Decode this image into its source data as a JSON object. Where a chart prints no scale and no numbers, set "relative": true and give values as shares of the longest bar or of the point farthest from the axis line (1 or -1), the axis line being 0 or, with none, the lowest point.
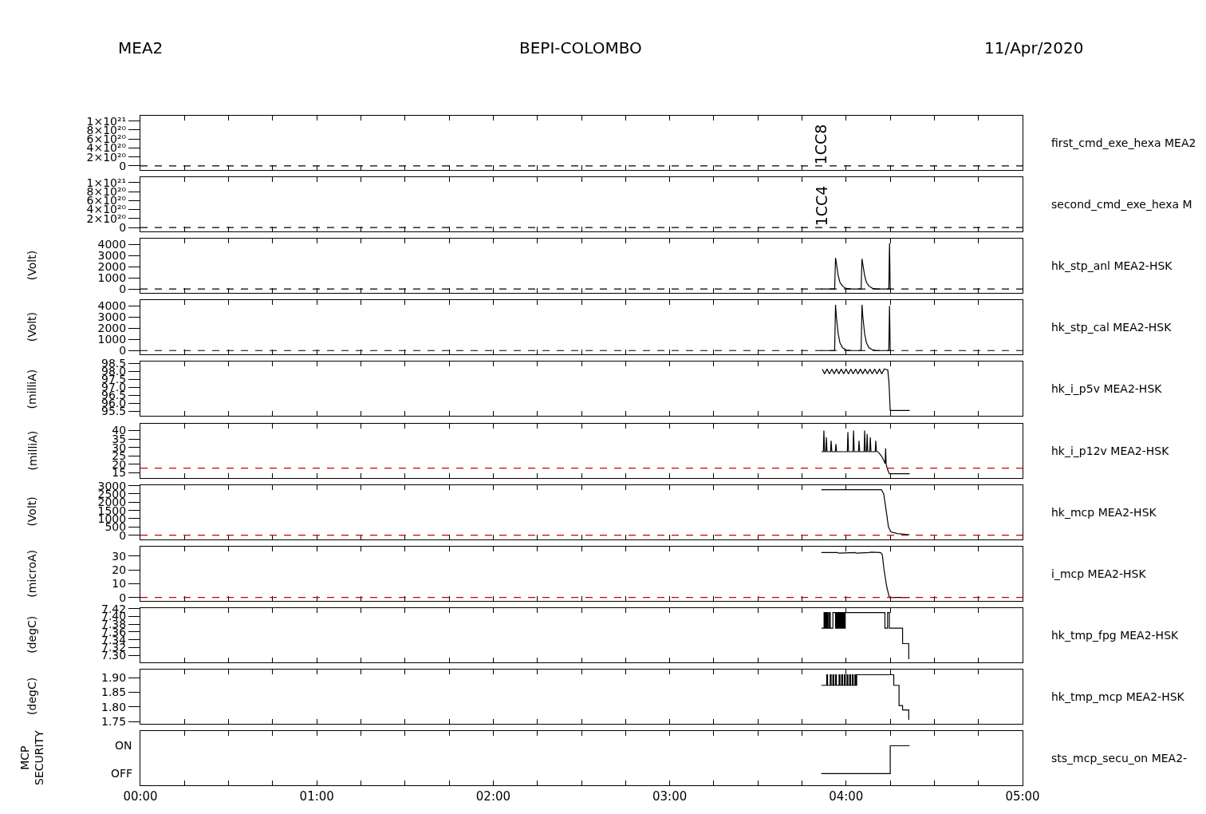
{
  "chart_data": [
    {
      "type": "line",
      "title": "BEPI-COLOMBO",
      "annotations": [
        "MEA2",
        "11/Apr/2020",
        {
          "text": "1CC8",
          "x": 3.86,
          "y": 0
        },
        "first_cmd_exe_hexa MEA2"
      ],
      "xlim": [
        0,
        5
      ],
      "xticks": [
        {
          "value": 0,
          "label": null
        },
        {
          "value": 0.25,
          "label": null
        },
        {
          "value": 0.5,
          "label": null
        },
        {
          "value": 0.75,
          "label": null
        },
        {
          "value": 1,
          "label": null
        },
        {
          "value": 1.25,
          "label": null
        },
        {
          "value": 1.5,
          "label": null
        },
        {
          "value": 1.75,
          "label": null
        },
        {
          "value": 2,
          "label": null
        },
        {
          "value": 2.25,
          "label": null
        },
        {
          "value": 2.5,
          "label": null
        },
        {
          "value": 2.75,
          "label": null
        },
        {
          "value": 3,
          "label": null
        },
        {
          "value": 3.25,
          "label": null
        },
        {
          "value": 3.5,
          "label": null
        },
        {
          "value": 3.75,
          "label": null
        },
        {
          "value": 4,
          "label": null
        },
        {
          "value": 4.25,
          "label": null
        },
        {
          "value": 4.5,
          "label": null
        },
        {
          "value": 4.75,
          "label": null
        },
        {
          "value": 5,
          "label": null
        }
      ],
      "ylim": [
        -9e+19,
        1.12e+21
      ],
      "yticks": [
        0,
        {
          "value": 2e+20,
          "label": "2×10²⁰"
        },
        {
          "value": 4e+20,
          "label": "4×10²⁰"
        },
        {
          "value": 6e+20,
          "label": "6×10²⁰"
        },
        {
          "value": 8e+20,
          "label": "8×10²⁰"
        },
        {
          "value": 1e+21,
          "label": "1×10²¹"
        }
      ],
      "ref_lines": [
        {
          "axis": "y",
          "value": 0,
          "color": "#000000",
          "line_style": "dashed"
        }
      ],
      "tick_labels": "y"
    },
    {
      "type": "line",
      "annotations": [
        {
          "text": "1CC4",
          "x": 3.86,
          "y": 0
        },
        "second_cmd_exe_hexa M"
      ],
      "xlim": [
        0,
        5
      ],
      "xticks": [
        {
          "value": 0,
          "label": null
        },
        {
          "value": 0.25,
          "label": null
        },
        {
          "value": 0.5,
          "label": null
        },
        {
          "value": 0.75,
          "label": null
        },
        {
          "value": 1,
          "label": null
        },
        {
          "value": 1.25,
          "label": null
        },
        {
          "value": 1.5,
          "label": null
        },
        {
          "value": 1.75,
          "label": null
        },
        {
          "value": 2,
          "label": null
        },
        {
          "value": 2.25,
          "label": null
        },
        {
          "value": 2.5,
          "label": null
        },
        {
          "value": 2.75,
          "label": null
        },
        {
          "value": 3,
          "label": null
        },
        {
          "value": 3.25,
          "label": null
        },
        {
          "value": 3.5,
          "label": null
        },
        {
          "value": 3.75,
          "label": null
        },
        {
          "value": 4,
          "label": null
        },
        {
          "value": 4.25,
          "label": null
        },
        {
          "value": 4.5,
          "label": null
        },
        {
          "value": 4.75,
          "label": null
        },
        {
          "value": 5,
          "label": null
        }
      ],
      "ylim": [
        -9e+19,
        1.12e+21
      ],
      "yticks": [
        0,
        {
          "value": 2e+20,
          "label": "2×10²⁰"
        },
        {
          "value": 4e+20,
          "label": "4×10²⁰"
        },
        {
          "value": 6e+20,
          "label": "6×10²⁰"
        },
        {
          "value": 8e+20,
          "label": "8×10²⁰"
        },
        {
          "value": 1e+21,
          "label": "1×10²¹"
        }
      ],
      "ref_lines": [
        {
          "axis": "y",
          "value": 0,
          "color": "#000000",
          "line_style": "dashed"
        }
      ],
      "tick_labels": "y"
    },
    {
      "type": "line",
      "ylabel": "(Volt)",
      "annotations": [
        "hk_stp_anl MEA2-HSK"
      ],
      "xlim": [
        0,
        5
      ],
      "xticks": [
        {
          "value": 0,
          "label": null
        },
        {
          "value": 0.25,
          "label": null
        },
        {
          "value": 0.5,
          "label": null
        },
        {
          "value": 0.75,
          "label": null
        },
        {
          "value": 1,
          "label": null
        },
        {
          "value": 1.25,
          "label": null
        },
        {
          "value": 1.5,
          "label": null
        },
        {
          "value": 1.75,
          "label": null
        },
        {
          "value": 2,
          "label": null
        },
        {
          "value": 2.25,
          "label": null
        },
        {
          "value": 2.5,
          "label": null
        },
        {
          "value": 2.75,
          "label": null
        },
        {
          "value": 3,
          "label": null
        },
        {
          "value": 3.25,
          "label": null
        },
        {
          "value": 3.5,
          "label": null
        },
        {
          "value": 3.75,
          "label": null
        },
        {
          "value": 4,
          "label": null
        },
        {
          "value": 4.25,
          "label": null
        },
        {
          "value": 4.5,
          "label": null
        },
        {
          "value": 4.75,
          "label": null
        },
        {
          "value": 5,
          "label": null
        }
      ],
      "ylim": [
        -360,
        4500
      ],
      "yticks": [
        0,
        1000,
        2000,
        3000,
        4000
      ],
      "ref_lines": [
        {
          "axis": "y",
          "value": 0,
          "color": "#000000",
          "line_style": "dashed"
        }
      ],
      "tick_labels": "y",
      "series": [
        {
          "color": "#000000",
          "x": [
            3.86,
            3.935,
            3.94,
            3.945,
            3.955,
            3.965,
            3.98,
            4.0,
            4.03,
            4.085,
            4.09,
            4.095,
            4.105,
            4.115,
            4.13,
            4.15,
            4.17,
            4.242,
            4.246,
            4.25
          ],
          "values": [
            0,
            0,
            2800,
            2300,
            1200,
            600,
            250,
            50,
            0,
            0,
            2700,
            2200,
            1200,
            600,
            250,
            60,
            0,
            0,
            4100,
            0
          ]
        }
      ]
    },
    {
      "type": "line",
      "ylabel": "(Volt)",
      "annotations": [
        "hk_stp_cal MEA2-HSK"
      ],
      "xlim": [
        0,
        5
      ],
      "xticks": [
        {
          "value": 0,
          "label": null
        },
        {
          "value": 0.25,
          "label": null
        },
        {
          "value": 0.5,
          "label": null
        },
        {
          "value": 0.75,
          "label": null
        },
        {
          "value": 1,
          "label": null
        },
        {
          "value": 1.25,
          "label": null
        },
        {
          "value": 1.5,
          "label": null
        },
        {
          "value": 1.75,
          "label": null
        },
        {
          "value": 2,
          "label": null
        },
        {
          "value": 2.25,
          "label": null
        },
        {
          "value": 2.5,
          "label": null
        },
        {
          "value": 2.75,
          "label": null
        },
        {
          "value": 3,
          "label": null
        },
        {
          "value": 3.25,
          "label": null
        },
        {
          "value": 3.5,
          "label": null
        },
        {
          "value": 3.75,
          "label": null
        },
        {
          "value": 4,
          "label": null
        },
        {
          "value": 4.25,
          "label": null
        },
        {
          "value": 4.5,
          "label": null
        },
        {
          "value": 4.75,
          "label": null
        },
        {
          "value": 5,
          "label": null
        }
      ],
      "ylim": [
        -360,
        4500
      ],
      "yticks": [
        0,
        1000,
        2000,
        3000,
        4000
      ],
      "ref_lines": [
        {
          "axis": "y",
          "value": 0,
          "color": "#000000",
          "line_style": "dashed"
        }
      ],
      "tick_labels": "y",
      "series": [
        {
          "color": "#000000",
          "x": [
            3.86,
            3.935,
            3.94,
            3.945,
            3.955,
            3.965,
            3.98,
            4.0,
            4.03,
            4.085,
            4.09,
            4.095,
            4.105,
            4.115,
            4.13,
            4.15,
            4.17,
            4.242,
            4.246,
            4.25
          ],
          "values": [
            0,
            0,
            4100,
            3000,
            1500,
            700,
            250,
            50,
            0,
            0,
            4100,
            3000,
            1500,
            700,
            250,
            60,
            0,
            0,
            4000,
            0
          ]
        }
      ]
    },
    {
      "type": "line",
      "ylabel": "(milliA)",
      "annotations": [
        "hk_i_p5v MEA2-HSK"
      ],
      "xlim": [
        0,
        5
      ],
      "xticks": [
        {
          "value": 0,
          "label": null
        },
        {
          "value": 0.25,
          "label": null
        },
        {
          "value": 0.5,
          "label": null
        },
        {
          "value": 0.75,
          "label": null
        },
        {
          "value": 1,
          "label": null
        },
        {
          "value": 1.25,
          "label": null
        },
        {
          "value": 1.5,
          "label": null
        },
        {
          "value": 1.75,
          "label": null
        },
        {
          "value": 2,
          "label": null
        },
        {
          "value": 2.25,
          "label": null
        },
        {
          "value": 2.5,
          "label": null
        },
        {
          "value": 2.75,
          "label": null
        },
        {
          "value": 3,
          "label": null
        },
        {
          "value": 3.25,
          "label": null
        },
        {
          "value": 3.5,
          "label": null
        },
        {
          "value": 3.75,
          "label": null
        },
        {
          "value": 4,
          "label": null
        },
        {
          "value": 4.25,
          "label": null
        },
        {
          "value": 4.5,
          "label": null
        },
        {
          "value": 4.75,
          "label": null
        },
        {
          "value": 5,
          "label": null
        }
      ],
      "ylim": [
        95.2,
        98.6
      ],
      "yticks": [
        95.5,
        {
          "value": 96,
          "label": "96.0"
        },
        96.5,
        {
          "value": 97,
          "label": "97.0"
        },
        97.5,
        {
          "value": 98,
          "label": "98.0"
        },
        98.5
      ],
      "tick_labels": "y",
      "series": [
        {
          "color": "#000000",
          "x": [
            3.865,
            3.878,
            3.892,
            3.905,
            3.919,
            3.932,
            3.946,
            3.959,
            3.973,
            3.986,
            4.0,
            4.013,
            4.027,
            4.04,
            4.054,
            4.067,
            4.081,
            4.094,
            4.108,
            4.121,
            4.135,
            4.148,
            4.162,
            4.175,
            4.189,
            4.202,
            4.216,
            4.236,
            4.243,
            4.25,
            4.36
          ],
          "values": [
            98.15,
            97.85,
            98.15,
            97.85,
            98.15,
            97.85,
            98.15,
            97.85,
            98.15,
            97.85,
            98.15,
            97.85,
            98.15,
            97.85,
            98.15,
            97.85,
            98.15,
            97.85,
            98.15,
            97.85,
            98.15,
            97.85,
            98.15,
            97.85,
            98.15,
            97.85,
            98.15,
            98.1,
            97.3,
            95.55,
            95.55
          ]
        }
      ]
    },
    {
      "type": "line",
      "ylabel": "(milliA)",
      "annotations": [
        "hk_i_p12v MEA2-HSK"
      ],
      "xlim": [
        0,
        5
      ],
      "xticks": [
        {
          "value": 0,
          "label": null
        },
        {
          "value": 0.25,
          "label": null
        },
        {
          "value": 0.5,
          "label": null
        },
        {
          "value": 0.75,
          "label": null
        },
        {
          "value": 1,
          "label": null
        },
        {
          "value": 1.25,
          "label": null
        },
        {
          "value": 1.5,
          "label": null
        },
        {
          "value": 1.75,
          "label": null
        },
        {
          "value": 2,
          "label": null
        },
        {
          "value": 2.25,
          "label": null
        },
        {
          "value": 2.5,
          "label": null
        },
        {
          "value": 2.75,
          "label": null
        },
        {
          "value": 3,
          "label": null
        },
        {
          "value": 3.25,
          "label": null
        },
        {
          "value": 3.5,
          "label": null
        },
        {
          "value": 3.75,
          "label": null
        },
        {
          "value": 4,
          "label": null
        },
        {
          "value": 4.25,
          "label": null
        },
        {
          "value": 4.5,
          "label": null
        },
        {
          "value": 4.75,
          "label": null
        },
        {
          "value": 5,
          "label": null
        }
      ],
      "ylim": [
        12.2,
        44.2
      ],
      "yticks": [
        15,
        20,
        25,
        30,
        35,
        40
      ],
      "ref_lines": [
        {
          "axis": "y",
          "value": 17.8,
          "color": "#cc0000",
          "line_style": "dashed"
        }
      ],
      "tick_labels": "y",
      "series": [
        {
          "color": "#000000",
          "x": [
            3.86,
            3.871,
            3.874,
            3.878,
            3.885,
            3.888,
            3.892,
            3.912,
            3.915,
            3.919,
            3.939,
            3.942,
            3.946,
            4.007,
            4.01,
            4.014,
            4.039,
            4.042,
            4.046,
            4.07,
            4.073,
            4.077,
            4.102,
            4.105,
            4.109,
            4.116,
            4.119,
            4.123,
            4.134,
            4.137,
            4.141,
            4.165,
            4.168,
            4.172,
            4.18,
            4.2,
            4.215,
            4.221,
            4.224,
            4.227,
            4.235,
            4.245,
            4.36
          ],
          "values": [
            27.5,
            27.5,
            40,
            27.5,
            27.5,
            36,
            27.5,
            27.5,
            34,
            27.5,
            27.5,
            32,
            27.5,
            27.5,
            39,
            27.5,
            27.5,
            40,
            27.5,
            27.5,
            34,
            27.5,
            27.5,
            40,
            27.5,
            27.5,
            38,
            27.5,
            27.5,
            36,
            27.5,
            27.5,
            34,
            27.5,
            27.5,
            25,
            22,
            20.5,
            29.5,
            20,
            17,
            14.5,
            14.5
          ]
        }
      ]
    },
    {
      "type": "line",
      "ylabel": "(Volt)",
      "annotations": [
        "hk_mcp MEA2-HSK"
      ],
      "xlim": [
        0,
        5
      ],
      "xticks": [
        {
          "value": 0,
          "label": null
        },
        {
          "value": 0.25,
          "label": null
        },
        {
          "value": 0.5,
          "label": null
        },
        {
          "value": 0.75,
          "label": null
        },
        {
          "value": 1,
          "label": null
        },
        {
          "value": 1.25,
          "label": null
        },
        {
          "value": 1.5,
          "label": null
        },
        {
          "value": 1.75,
          "label": null
        },
        {
          "value": 2,
          "label": null
        },
        {
          "value": 2.25,
          "label": null
        },
        {
          "value": 2.5,
          "label": null
        },
        {
          "value": 2.75,
          "label": null
        },
        {
          "value": 3,
          "label": null
        },
        {
          "value": 3.25,
          "label": null
        },
        {
          "value": 3.5,
          "label": null
        },
        {
          "value": 3.75,
          "label": null
        },
        {
          "value": 4,
          "label": null
        },
        {
          "value": 4.25,
          "label": null
        },
        {
          "value": 4.5,
          "label": null
        },
        {
          "value": 4.75,
          "label": null
        },
        {
          "value": 5,
          "label": null
        }
      ],
      "ylim": [
        -240,
        3050
      ],
      "yticks": [
        0,
        500,
        1000,
        1500,
        2000,
        2500,
        3000
      ],
      "ref_lines": [
        {
          "axis": "y",
          "value": 0,
          "color": "#cc0000",
          "line_style": "dashed"
        }
      ],
      "tick_labels": "y",
      "series": [
        {
          "color": "#000000",
          "x": [
            3.86,
            4.2,
            4.213,
            4.227,
            4.24,
            4.254,
            4.29,
            4.36
          ],
          "values": [
            2760,
            2760,
            2500,
            1500,
            500,
            200,
            100,
            30
          ]
        }
      ]
    },
    {
      "type": "line",
      "ylabel": "(microA)",
      "annotations": [
        "i_mcp MEA2-HSK"
      ],
      "xlim": [
        0,
        5
      ],
      "xticks": [
        {
          "value": 0,
          "label": null
        },
        {
          "value": 0.25,
          "label": null
        },
        {
          "value": 0.5,
          "label": null
        },
        {
          "value": 0.75,
          "label": null
        },
        {
          "value": 1,
          "label": null
        },
        {
          "value": 1.25,
          "label": null
        },
        {
          "value": 1.5,
          "label": null
        },
        {
          "value": 1.75,
          "label": null
        },
        {
          "value": 2,
          "label": null
        },
        {
          "value": 2.25,
          "label": null
        },
        {
          "value": 2.5,
          "label": null
        },
        {
          "value": 2.75,
          "label": null
        },
        {
          "value": 3,
          "label": null
        },
        {
          "value": 3.25,
          "label": null
        },
        {
          "value": 3.5,
          "label": null
        },
        {
          "value": 3.75,
          "label": null
        },
        {
          "value": 4,
          "label": null
        },
        {
          "value": 4.25,
          "label": null
        },
        {
          "value": 4.5,
          "label": null
        },
        {
          "value": 4.75,
          "label": null
        },
        {
          "value": 5,
          "label": null
        }
      ],
      "ylim": [
        -2.3,
        36.9
      ],
      "yticks": [
        0,
        10,
        20,
        30
      ],
      "ref_lines": [
        {
          "axis": "y",
          "value": 0,
          "color": "#cc0000",
          "line_style": "dashed"
        }
      ],
      "tick_labels": "y",
      "series": [
        {
          "color": "#000000",
          "x": [
            3.86,
            3.95,
            3.96,
            4.05,
            4.06,
            4.13,
            4.14,
            4.195,
            4.205,
            4.215,
            4.23,
            4.245,
            4.36
          ],
          "values": [
            32.5,
            32.5,
            32,
            32.5,
            32,
            32.5,
            32.8,
            32.5,
            31,
            20,
            8,
            0,
            0
          ]
        }
      ]
    },
    {
      "type": "step",
      "ylabel": "(degC)",
      "annotations": [
        "hk_tmp_fpg MEA2-HSK"
      ],
      "xlim": [
        0,
        5
      ],
      "xticks": [
        {
          "value": 0,
          "label": null
        },
        {
          "value": 0.25,
          "label": null
        },
        {
          "value": 0.5,
          "label": null
        },
        {
          "value": 0.75,
          "label": null
        },
        {
          "value": 1,
          "label": null
        },
        {
          "value": 1.25,
          "label": null
        },
        {
          "value": 1.5,
          "label": null
        },
        {
          "value": 1.75,
          "label": null
        },
        {
          "value": 2,
          "label": null
        },
        {
          "value": 2.25,
          "label": null
        },
        {
          "value": 2.5,
          "label": null
        },
        {
          "value": 2.75,
          "label": null
        },
        {
          "value": 3,
          "label": null
        },
        {
          "value": 3.25,
          "label": null
        },
        {
          "value": 3.5,
          "label": null
        },
        {
          "value": 3.75,
          "label": null
        },
        {
          "value": 4,
          "label": null
        },
        {
          "value": 4.25,
          "label": null
        },
        {
          "value": 4.5,
          "label": null
        },
        {
          "value": 4.75,
          "label": null
        },
        {
          "value": 5,
          "label": null
        }
      ],
      "ylim": [
        7.282,
        7.422
      ],
      "yticks": [
        {
          "value": 7.3,
          "label": "7.30"
        },
        7.32,
        7.34,
        7.36,
        7.38,
        {
          "value": 7.4,
          "label": "7.40"
        },
        7.42
      ],
      "tick_labels": "y",
      "series": [
        {
          "color": "#000000",
          "x": [
            3.86,
            3.875,
            3.88,
            3.885,
            3.89,
            3.893,
            3.898,
            3.905,
            3.91,
            3.925,
            3.94,
            3.945,
            3.95,
            3.955,
            3.96,
            3.965,
            3.97,
            3.975,
            3.98,
            3.985,
            3.99,
            3.995,
            4.22,
            4.235,
            4.245,
            4.32,
            4.355
          ],
          "values": [
            7.37,
            7.41,
            7.37,
            7.41,
            7.37,
            7.41,
            7.37,
            7.41,
            7.37,
            7.41,
            7.37,
            7.41,
            7.37,
            7.41,
            7.37,
            7.41,
            7.37,
            7.41,
            7.37,
            7.41,
            7.37,
            7.41,
            7.37,
            7.41,
            7.37,
            7.33,
            7.29
          ]
        }
      ]
    },
    {
      "type": "step",
      "ylabel": "(degC)",
      "annotations": [
        "hk_tmp_mcp MEA2-HSK"
      ],
      "xlim": [
        0,
        5
      ],
      "xticks": [
        {
          "value": 0,
          "label": null
        },
        {
          "value": 0.25,
          "label": null
        },
        {
          "value": 0.5,
          "label": null
        },
        {
          "value": 0.75,
          "label": null
        },
        {
          "value": 1,
          "label": null
        },
        {
          "value": 1.25,
          "label": null
        },
        {
          "value": 1.5,
          "label": null
        },
        {
          "value": 1.75,
          "label": null
        },
        {
          "value": 2,
          "label": null
        },
        {
          "value": 2.25,
          "label": null
        },
        {
          "value": 2.5,
          "label": null
        },
        {
          "value": 2.75,
          "label": null
        },
        {
          "value": 3,
          "label": null
        },
        {
          "value": 3.25,
          "label": null
        },
        {
          "value": 3.5,
          "label": null
        },
        {
          "value": 3.75,
          "label": null
        },
        {
          "value": 4,
          "label": null
        },
        {
          "value": 4.25,
          "label": null
        },
        {
          "value": 4.5,
          "label": null
        },
        {
          "value": 4.75,
          "label": null
        },
        {
          "value": 5,
          "label": null
        }
      ],
      "ylim": [
        1.743,
        1.928
      ],
      "yticks": [
        1.75,
        {
          "value": 1.8,
          "label": "1.80"
        },
        1.85,
        {
          "value": 1.9,
          "label": "1.90"
        }
      ],
      "tick_labels": "y",
      "series": [
        {
          "color": "#000000",
          "x": [
            3.86,
            3.89,
            3.895,
            3.91,
            3.915,
            3.925,
            3.93,
            3.94,
            3.945,
            3.96,
            3.965,
            3.975,
            3.98,
            3.99,
            3.995,
            4.005,
            4.01,
            4.02,
            4.025,
            4.035,
            4.04,
            4.05,
            4.055,
            4.06,
            4.27,
            4.3,
            4.32,
            4.355
          ],
          "values": [
            1.874,
            1.91,
            1.874,
            1.91,
            1.874,
            1.91,
            1.874,
            1.91,
            1.874,
            1.91,
            1.874,
            1.91,
            1.874,
            1.91,
            1.874,
            1.91,
            1.874,
            1.91,
            1.874,
            1.91,
            1.874,
            1.91,
            1.874,
            1.91,
            1.874,
            1.805,
            1.79,
            1.756
          ]
        }
      ]
    },
    {
      "type": "step",
      "ylabel": "MCP\nSECURITY",
      "relative": true,
      "annotations": [
        "OFF",
        "ON",
        "sts_mcp_secu_on MEA2-"
      ],
      "xlim": [
        0,
        5
      ],
      "xticks": [
        {
          "value": 0,
          "label": "00:00"
        },
        {
          "value": 0.25,
          "label": null
        },
        {
          "value": 0.5,
          "label": null
        },
        {
          "value": 0.75,
          "label": null
        },
        {
          "value": 1,
          "label": "01:00"
        },
        {
          "value": 1.25,
          "label": null
        },
        {
          "value": 1.5,
          "label": null
        },
        {
          "value": 1.75,
          "label": null
        },
        {
          "value": 2,
          "label": "02:00"
        },
        {
          "value": 2.25,
          "label": null
        },
        {
          "value": 2.5,
          "label": null
        },
        {
          "value": 2.75,
          "label": null
        },
        {
          "value": 3,
          "label": "03:00"
        },
        {
          "value": 3.25,
          "label": null
        },
        {
          "value": 3.5,
          "label": null
        },
        {
          "value": 3.75,
          "label": null
        },
        {
          "value": 4,
          "label": "04:00"
        },
        {
          "value": 4.25,
          "label": null
        },
        {
          "value": 4.5,
          "label": null
        },
        {
          "value": 4.75,
          "label": null
        },
        {
          "value": 5,
          "label": "05:00"
        }
      ],
      "series": [
        {
          "color": "#000000",
          "x": [
            3.86,
            4.25,
            4.36
          ],
          "values": [
            0,
            1,
            1
          ]
        }
      ]
    }
  ]
}
